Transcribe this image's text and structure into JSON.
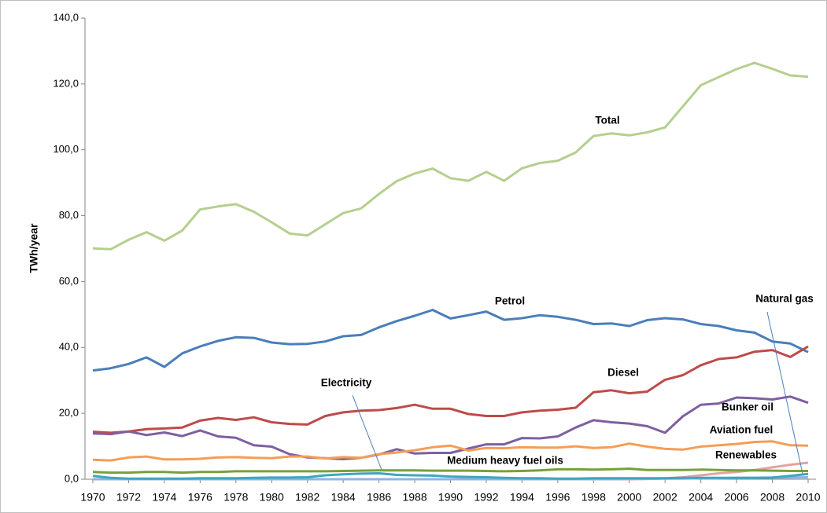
{
  "chart_data": {
    "type": "line",
    "y_label": "TWh/year",
    "x": [
      1970,
      1971,
      1972,
      1973,
      1974,
      1975,
      1976,
      1977,
      1978,
      1979,
      1980,
      1981,
      1982,
      1983,
      1984,
      1985,
      1986,
      1987,
      1988,
      1989,
      1990,
      1991,
      1992,
      1993,
      1994,
      1995,
      1996,
      1997,
      1998,
      1999,
      2000,
      2001,
      2002,
      2003,
      2004,
      2005,
      2006,
      2007,
      2008,
      2009,
      2010
    ],
    "xlim": [
      1970,
      2010
    ],
    "xticks": [
      1970,
      1972,
      1974,
      1976,
      1978,
      1980,
      1982,
      1984,
      1986,
      1988,
      1990,
      1992,
      1994,
      1996,
      1998,
      2000,
      2002,
      2004,
      2006,
      2008,
      2010
    ],
    "ylim": [
      0,
      140
    ],
    "yticks": [
      {
        "value": 0,
        "label": "0,0"
      },
      {
        "value": 20,
        "label": "20,0"
      },
      {
        "value": 40,
        "label": "40,0"
      },
      {
        "value": 60,
        "label": "60,0"
      },
      {
        "value": 80,
        "label": "80,0"
      },
      {
        "value": 100,
        "label": "100,0"
      },
      {
        "value": 120,
        "label": "120,0"
      },
      {
        "value": 140,
        "label": "140,0"
      }
    ],
    "grid": false,
    "series": [
      {
        "name": "Total",
        "color": "#b5cf8f",
        "values": [
          70.1,
          69.8,
          72.7,
          75.0,
          72.4,
          75.5,
          81.9,
          82.8,
          83.5,
          81.2,
          78.0,
          74.6,
          74.0,
          77.4,
          80.8,
          82.2,
          86.6,
          90.5,
          92.8,
          94.3,
          91.4,
          90.6,
          93.3,
          90.6,
          94.4,
          96.0,
          96.7,
          99.2,
          104.2,
          105.0,
          104.4,
          105.3,
          106.8,
          113.2,
          119.6,
          122.1,
          124.5,
          126.4,
          124.6,
          122.6,
          122.2
        ]
      },
      {
        "name": "Petrol",
        "color": "#4a7ebb",
        "values": [
          33.0,
          33.7,
          35.0,
          37.0,
          34.1,
          38.2,
          40.3,
          42.0,
          43.1,
          42.9,
          41.5,
          41.0,
          41.1,
          41.8,
          43.4,
          43.8,
          46.1,
          48.0,
          49.6,
          51.4,
          48.8,
          49.8,
          50.9,
          48.4,
          48.9,
          49.8,
          49.3,
          48.4,
          47.1,
          47.3,
          46.5,
          48.3,
          48.9,
          48.5,
          47.1,
          46.5,
          45.2,
          44.5,
          41.8,
          41.2,
          38.6
        ]
      },
      {
        "name": "Diesel",
        "color": "#be4b48",
        "values": [
          14.4,
          14.1,
          14.5,
          15.2,
          15.4,
          15.7,
          17.8,
          18.6,
          18.0,
          18.8,
          17.3,
          16.8,
          16.6,
          19.2,
          20.3,
          20.8,
          21.0,
          21.6,
          22.6,
          21.4,
          21.4,
          19.8,
          19.2,
          19.2,
          20.3,
          20.8,
          21.1,
          21.7,
          26.4,
          27.0,
          26.1,
          26.6,
          30.2,
          31.6,
          34.6,
          36.5,
          37.0,
          38.7,
          39.2,
          37.1,
          40.3
        ]
      },
      {
        "name": "Bunker oil",
        "color": "#7d60a0",
        "values": [
          13.9,
          13.7,
          14.5,
          13.4,
          14.2,
          13.1,
          14.8,
          13.0,
          12.6,
          10.3,
          9.9,
          7.6,
          6.6,
          6.4,
          6.1,
          6.5,
          7.5,
          9.1,
          7.8,
          8.0,
          8.0,
          9.3,
          10.6,
          10.6,
          12.5,
          12.4,
          13.0,
          15.7,
          17.9,
          17.3,
          16.9,
          16.1,
          14.1,
          19.1,
          22.6,
          23.0,
          24.8,
          24.6,
          24.2,
          25.1,
          23.2
        ]
      },
      {
        "name": "Aviation fuel",
        "color": "#f59d56",
        "values": [
          5.9,
          5.7,
          6.6,
          6.9,
          6.0,
          6.0,
          6.2,
          6.6,
          6.7,
          6.5,
          6.4,
          6.9,
          6.9,
          6.3,
          6.7,
          6.5,
          7.6,
          8.1,
          8.8,
          9.7,
          10.2,
          8.7,
          9.5,
          9.4,
          9.7,
          9.6,
          9.6,
          10.0,
          9.5,
          9.7,
          10.8,
          9.9,
          9.2,
          9.0,
          9.9,
          10.3,
          10.7,
          11.3,
          11.5,
          10.3,
          10.2
        ]
      },
      {
        "name": "Renewables",
        "color": "#e5a3a1",
        "values": [
          0,
          0,
          0,
          0,
          0,
          0,
          0,
          0,
          0,
          0,
          0,
          0,
          0,
          0,
          0,
          0,
          0,
          0,
          0,
          0,
          0,
          0,
          0,
          0,
          0,
          0,
          0,
          0,
          0,
          0,
          0,
          0.1,
          0.3,
          0.6,
          1.2,
          1.8,
          2.2,
          2.8,
          3.6,
          4.4,
          5.0
        ]
      },
      {
        "name": "Natural gas",
        "color": "#8fb4e3",
        "values": [
          0,
          0,
          0,
          0,
          0,
          0,
          0,
          0,
          0,
          0,
          0,
          0,
          0,
          0,
          0,
          0,
          0,
          0,
          0,
          0,
          0,
          0,
          0,
          0,
          0,
          0,
          0,
          0,
          0,
          0,
          0.1,
          0.1,
          0.2,
          0.2,
          0.3,
          0.3,
          0.4,
          0.4,
          0.5,
          0.5,
          0.6
        ]
      },
      {
        "name": "Electricity",
        "color": "#77a03c",
        "values": [
          2.2,
          2.0,
          2.0,
          2.2,
          2.2,
          2.0,
          2.2,
          2.2,
          2.4,
          2.4,
          2.4,
          2.4,
          2.4,
          2.4,
          2.5,
          2.6,
          2.7,
          2.7,
          2.7,
          2.6,
          2.6,
          2.6,
          2.5,
          2.4,
          2.5,
          2.7,
          3.0,
          3.0,
          2.9,
          3.0,
          3.2,
          2.8,
          2.8,
          2.8,
          2.9,
          2.8,
          2.7,
          2.7,
          2.6,
          2.5,
          2.5
        ]
      },
      {
        "name": "Medium heavy fuel oils",
        "color": "#3fa6bf",
        "values": [
          1.0,
          0.4,
          0.2,
          0.2,
          0.2,
          0.2,
          0.3,
          0.3,
          0.3,
          0.4,
          0.5,
          0.5,
          0.6,
          1.2,
          1.5,
          1.7,
          1.8,
          1.3,
          1.2,
          1.1,
          0.8,
          0.7,
          0.6,
          0.4,
          0.3,
          0.3,
          0.2,
          0.2,
          0.3,
          0.3,
          0.3,
          0.3,
          0.3,
          0.4,
          0.4,
          0.4,
          0.4,
          0.4,
          0.5,
          1.0,
          1.6
        ]
      }
    ]
  }
}
